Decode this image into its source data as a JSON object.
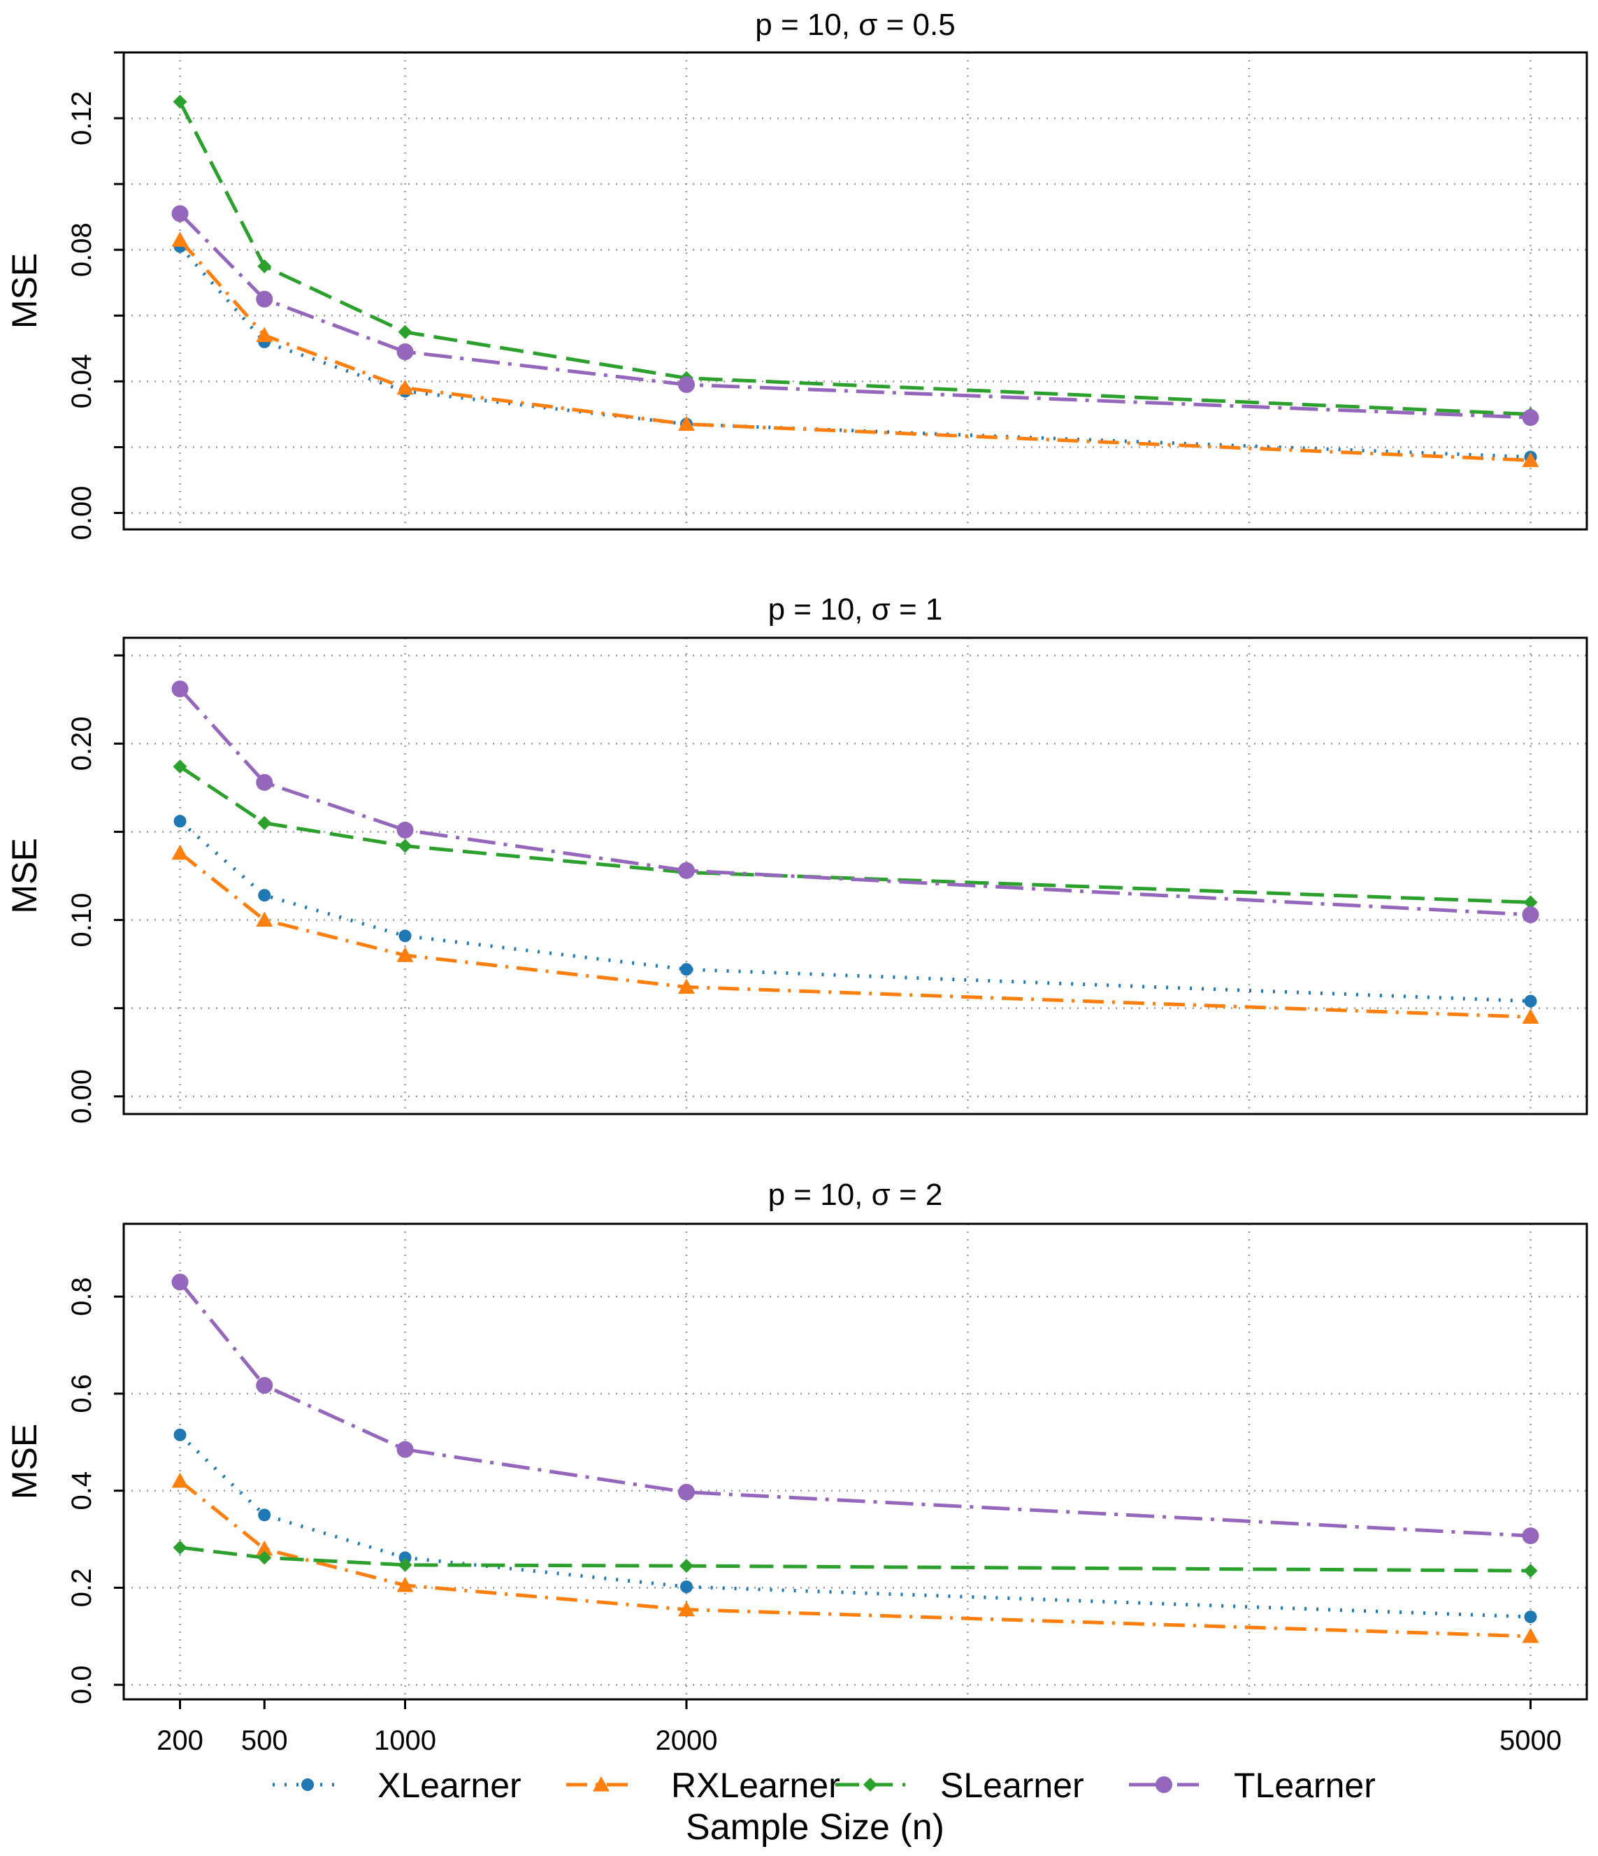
{
  "chart_data": {
    "type": "line",
    "xlabel": "Sample Size (n)",
    "x": [
      200,
      500,
      1000,
      2000,
      5000
    ],
    "xticks": [
      200,
      500,
      1000,
      2000,
      5000
    ],
    "xtick_labels": [
      "200",
      "500",
      "1000",
      "2000",
      "5000"
    ],
    "xlim": [
      0,
      5200
    ],
    "x_gridlines": [
      0,
      200,
      1000,
      2000,
      3000,
      4000,
      5000
    ],
    "legend": {
      "position": "bottom",
      "entries": [
        "XLearner",
        "RXLearner",
        "SLearner",
        "TLearner"
      ]
    },
    "colors": {
      "XLearner": "#1f77b4",
      "RXLearner": "#ff7f0e",
      "SLearner": "#2ca02c",
      "TLearner": "#9467bd"
    },
    "panels": [
      {
        "title": "p = 10, σ = 0.5",
        "ylabel": "MSE",
        "ylim": [
          -0.005,
          0.14
        ],
        "yticks": [
          0.0,
          0.04,
          0.08,
          0.12
        ],
        "ytick_labels": [
          "0.00",
          "0.04",
          "0.08",
          "0.12"
        ],
        "y_gridlines": [
          0.0,
          0.02,
          0.04,
          0.06,
          0.08,
          0.1,
          0.12,
          0.14
        ],
        "series": [
          {
            "name": "XLearner",
            "values": [
              0.081,
              0.052,
              0.037,
              0.027,
              0.017
            ]
          },
          {
            "name": "RXLearner",
            "values": [
              0.083,
              0.054,
              0.038,
              0.027,
              0.016
            ]
          },
          {
            "name": "SLearner",
            "values": [
              0.125,
              0.075,
              0.055,
              0.041,
              0.03
            ]
          },
          {
            "name": "TLearner",
            "values": [
              0.091,
              0.065,
              0.049,
              0.039,
              0.029
            ]
          }
        ]
      },
      {
        "title": "p = 10, σ = 1",
        "ylabel": "MSE",
        "ylim": [
          -0.01,
          0.26
        ],
        "yticks": [
          0.0,
          0.1,
          0.2
        ],
        "ytick_labels": [
          "0.00",
          "0.10",
          "0.20"
        ],
        "y_gridlines": [
          0.0,
          0.05,
          0.1,
          0.15,
          0.2,
          0.25
        ],
        "series": [
          {
            "name": "XLearner",
            "values": [
              0.156,
              0.114,
              0.091,
              0.072,
              0.054
            ]
          },
          {
            "name": "RXLearner",
            "values": [
              0.138,
              0.1,
              0.08,
              0.062,
              0.045
            ]
          },
          {
            "name": "SLearner",
            "values": [
              0.187,
              0.155,
              0.142,
              0.127,
              0.11
            ]
          },
          {
            "name": "TLearner",
            "values": [
              0.231,
              0.178,
              0.151,
              0.128,
              0.103
            ]
          }
        ]
      },
      {
        "title": "p = 10, σ = 2",
        "ylabel": "MSE",
        "ylim": [
          -0.03,
          0.95
        ],
        "yticks": [
          0.0,
          0.2,
          0.4,
          0.6,
          0.8
        ],
        "ytick_labels": [
          "0.0",
          "0.2",
          "0.4",
          "0.6",
          "0.8"
        ],
        "y_gridlines": [
          0.0,
          0.2,
          0.4,
          0.6,
          0.8
        ],
        "series": [
          {
            "name": "XLearner",
            "values": [
              0.515,
              0.35,
              0.262,
              0.202,
              0.14
            ]
          },
          {
            "name": "RXLearner",
            "values": [
              0.42,
              0.28,
              0.205,
              0.155,
              0.1
            ]
          },
          {
            "name": "SLearner",
            "values": [
              0.283,
              0.262,
              0.247,
              0.245,
              0.235
            ]
          },
          {
            "name": "TLearner",
            "values": [
              0.83,
              0.617,
              0.485,
              0.397,
              0.307
            ]
          }
        ]
      }
    ]
  }
}
